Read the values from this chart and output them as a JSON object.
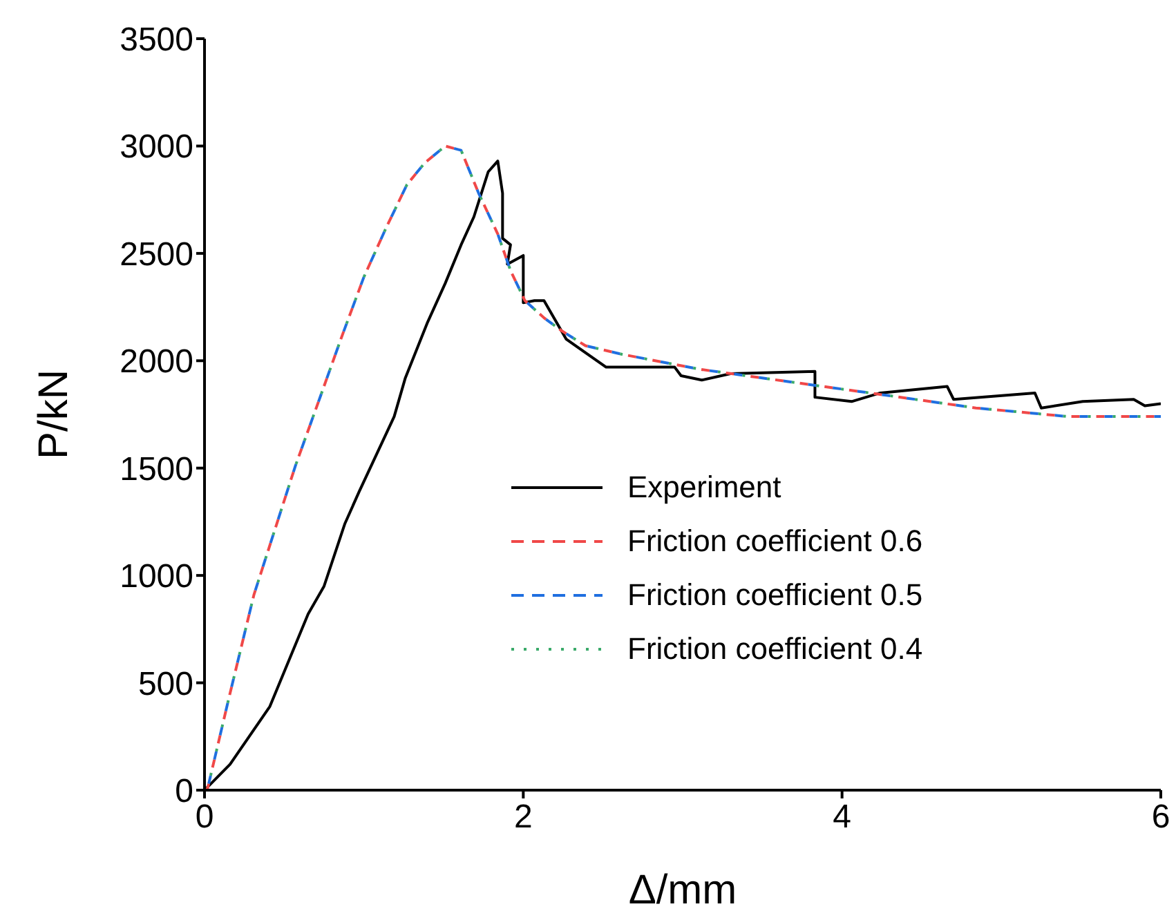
{
  "chart_data": {
    "type": "line",
    "xlabel": "Δ/mm",
    "ylabel": "P/kN",
    "xlim": [
      0,
      6
    ],
    "xticks": [
      0,
      2,
      4,
      6
    ],
    "ylim": [
      0,
      3500
    ],
    "yticks": [
      0,
      500,
      1000,
      1500,
      2000,
      2500,
      3000,
      3500
    ],
    "grid": false,
    "legend": "bottom right",
    "marker": "none",
    "series": [
      {
        "name": "Experiment",
        "color": "#000000",
        "line_style": "solid",
        "x": [
          0,
          0.16,
          0.41,
          0.65,
          0.75,
          0.88,
          0.97,
          1.19,
          1.26,
          1.4,
          1.51,
          1.61,
          1.69,
          1.78,
          1.84,
          1.87,
          1.87,
          1.92,
          1.9,
          2.0,
          2.0,
          2.07,
          2.13,
          2.27,
          2.52,
          2.95,
          2.99,
          3.12,
          3.3,
          3.83,
          3.83,
          4.06,
          4.24,
          4.66,
          4.7,
          5.21,
          5.25,
          5.51,
          5.83,
          5.9,
          6.0
        ],
        "values": [
          0,
          120,
          390,
          820,
          950,
          1240,
          1390,
          1740,
          1920,
          2180,
          2360,
          2540,
          2670,
          2880,
          2930,
          2780,
          2570,
          2540,
          2450,
          2490,
          2270,
          2280,
          2280,
          2100,
          1970,
          1970,
          1930,
          1910,
          1940,
          1950,
          1830,
          1810,
          1850,
          1880,
          1820,
          1850,
          1780,
          1810,
          1820,
          1790,
          1800
        ]
      },
      {
        "name": "Friction coefficient 0.6",
        "color": "#f04848",
        "line_style": "dashed",
        "x": [
          0,
          0.02,
          0.15,
          0.31,
          0.44,
          0.57,
          0.73,
          0.86,
          1.0,
          1.14,
          1.27,
          1.38,
          1.51,
          1.61,
          1.72,
          1.84,
          1.92,
          2.01,
          2.13,
          2.24,
          2.39,
          2.62,
          3.11,
          3.69,
          4.27,
          4.84,
          5.42,
          6.0
        ],
        "values": [
          0,
          10,
          420,
          910,
          1210,
          1510,
          1840,
          2110,
          2390,
          2620,
          2820,
          2920,
          3000,
          2980,
          2780,
          2590,
          2420,
          2280,
          2200,
          2140,
          2070,
          2030,
          1960,
          1900,
          1840,
          1780,
          1740,
          1740
        ]
      },
      {
        "name": "Friction coefficient 0.5",
        "color": "#1f6fe0",
        "line_style": "dashed",
        "x": [
          0,
          0.02,
          0.15,
          0.31,
          0.44,
          0.57,
          0.73,
          0.86,
          1.0,
          1.14,
          1.27,
          1.38,
          1.51,
          1.61,
          1.72,
          1.84,
          1.92,
          2.01,
          2.13,
          2.24,
          2.39,
          2.62,
          3.11,
          3.69,
          4.27,
          4.84,
          5.42,
          6.0
        ],
        "values": [
          0,
          10,
          420,
          910,
          1210,
          1510,
          1840,
          2110,
          2390,
          2620,
          2820,
          2920,
          3000,
          2980,
          2780,
          2590,
          2420,
          2280,
          2200,
          2140,
          2070,
          2030,
          1960,
          1900,
          1840,
          1780,
          1740,
          1740
        ]
      },
      {
        "name": "Friction coefficient 0.4",
        "color": "#3aaa6a",
        "line_style": "dotted",
        "x": [
          0,
          0.02,
          0.15,
          0.31,
          0.44,
          0.57,
          0.73,
          0.86,
          1.0,
          1.14,
          1.27,
          1.38,
          1.51,
          1.61,
          1.72,
          1.84,
          1.92,
          2.01,
          2.13,
          2.24,
          2.39,
          2.62,
          3.11,
          3.69,
          4.27,
          4.84,
          5.42,
          6.0
        ],
        "values": [
          0,
          10,
          420,
          910,
          1210,
          1510,
          1840,
          2110,
          2390,
          2620,
          2820,
          2920,
          3000,
          2980,
          2780,
          2590,
          2420,
          2280,
          2200,
          2140,
          2070,
          2030,
          1960,
          1900,
          1840,
          1780,
          1740,
          1740
        ]
      }
    ]
  }
}
